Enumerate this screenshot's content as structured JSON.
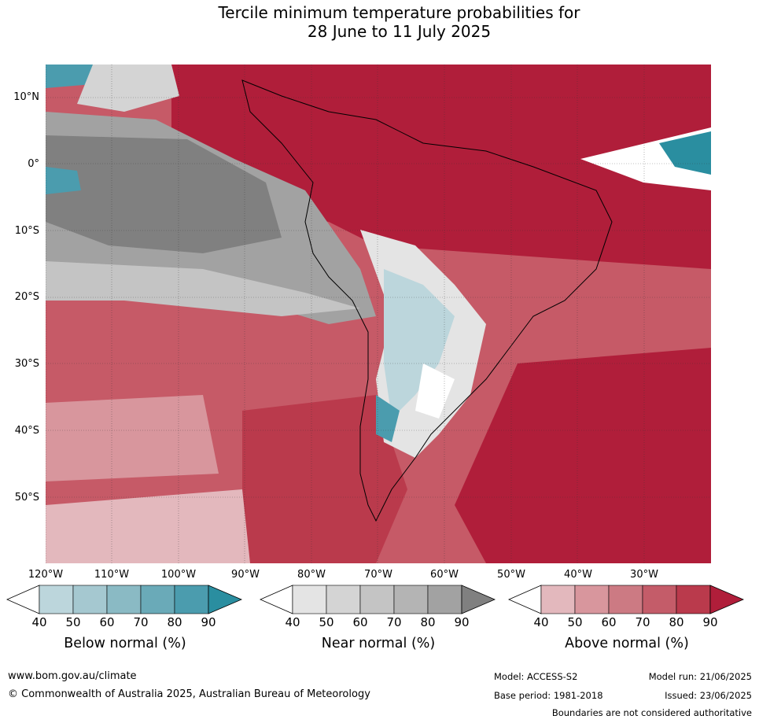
{
  "title_line1": "Tercile minimum temperature probabilities for",
  "title_line2": "28 June to 11 July 2025",
  "latitudes": [
    "10°N",
    "0°",
    "10°S",
    "20°S",
    "30°S",
    "40°S",
    "50°S"
  ],
  "longitudes": [
    "120°W",
    "110°W",
    "100°W",
    "90°W",
    "80°W",
    "70°W",
    "60°W",
    "50°W",
    "40°W",
    "30°W"
  ],
  "colorbars": {
    "below": {
      "label": "Below normal (%)",
      "ticks": [
        "40",
        "50",
        "60",
        "70",
        "80",
        "90"
      ],
      "colors": [
        "#ffffff",
        "#bcd6dc",
        "#a5c8d0",
        "#8abac4",
        "#6aaab8",
        "#4b9cae",
        "#2a8ea0"
      ]
    },
    "near": {
      "label": "Near normal (%)",
      "ticks": [
        "40",
        "50",
        "60",
        "70",
        "80",
        "90"
      ],
      "colors": [
        "#ffffff",
        "#e4e4e4",
        "#d4d4d4",
        "#c4c4c4",
        "#b4b4b4",
        "#a2a2a2",
        "#808080"
      ]
    },
    "above": {
      "label": "Above normal (%)",
      "ticks": [
        "40",
        "50",
        "60",
        "70",
        "80",
        "90"
      ],
      "colors": [
        "#ffffff",
        "#e3b8bd",
        "#d8969d",
        "#cc7a83",
        "#c45c69",
        "#ba3a4c",
        "#b01e3a"
      ]
    }
  },
  "footer": {
    "website": "www.bom.gov.au/climate",
    "copyright": "© Commonwealth of Australia 2025, Australian Bureau of Meteorology",
    "model": "Model: ACCESS-S2",
    "model_run": "Model run: 21/06/2025",
    "base_period": "Base period: 1981-2018",
    "issued": "Issued: 23/06/2025",
    "disclaimer": "Boundaries are not considered authoritative"
  }
}
